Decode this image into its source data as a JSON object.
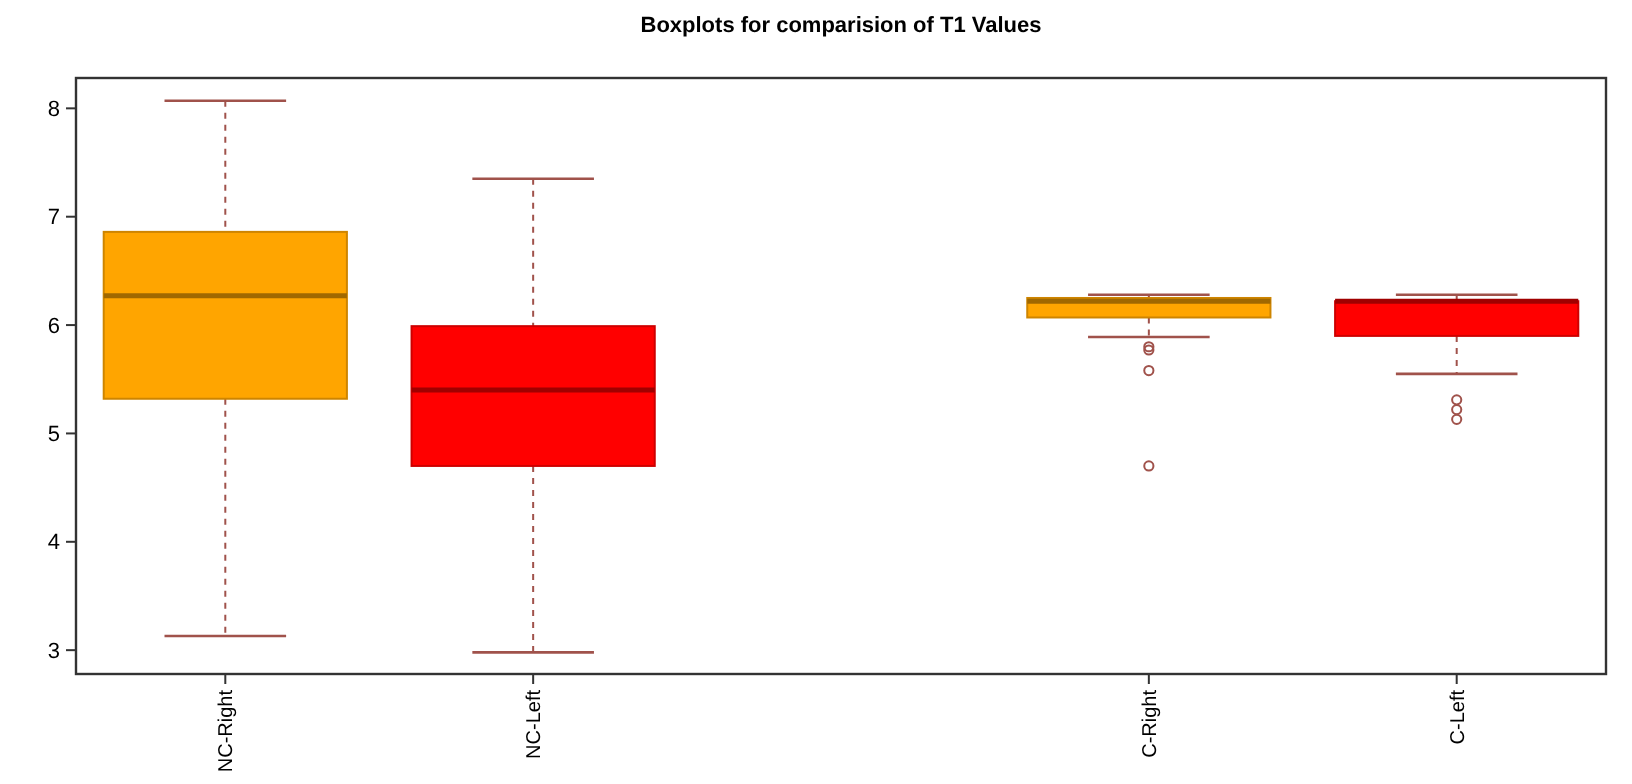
{
  "chart_data": {
    "type": "box",
    "title": "Boxplots for comparision of T1 Values",
    "categories": [
      "NC-Right",
      "NC-Left",
      null,
      "C-Right",
      "C-Left"
    ],
    "colors": [
      "#ffa500",
      "#ff0000",
      null,
      "#ffa500",
      "#ff0000"
    ],
    "boxes": [
      {
        "low": 3.13,
        "q1": 5.32,
        "median": 6.27,
        "q3": 6.86,
        "high": 8.07
      },
      {
        "low": 2.98,
        "q1": 4.7,
        "median": 5.4,
        "q3": 5.99,
        "high": 7.35
      },
      null,
      {
        "low": 5.89,
        "q1": 6.07,
        "median": 6.22,
        "q3": 6.25,
        "high": 6.28,
        "outliers": [
          5.8,
          5.77,
          5.58,
          4.7
        ]
      },
      {
        "low": 5.55,
        "q1": 5.9,
        "median": 6.22,
        "q3": 6.22,
        "high": 6.28,
        "outliers": [
          5.31,
          5.22,
          5.13
        ]
      }
    ],
    "ylim": [
      2.78,
      8.28
    ],
    "yticks": [
      3,
      4,
      5,
      6,
      7,
      8
    ],
    "grid": false
  }
}
